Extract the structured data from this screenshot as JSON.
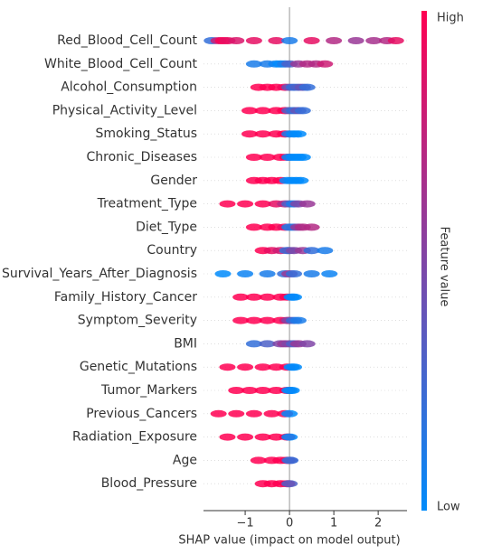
{
  "chart_data": {
    "type": "beeswarm",
    "xlabel": "SHAP value (impact on model output)",
    "colorbar_label": "Feature value",
    "colorbar_high": "High",
    "colorbar_low": "Low",
    "colors": [
      "#008bfb",
      "#ff0052"
    ],
    "xlim": [
      -1.94,
      2.65
    ],
    "xticks": [
      {
        "value": -1,
        "label": "−1"
      },
      0,
      1,
      2
    ],
    "series": [
      {
        "name": "Red_Blood_Cell_Count",
        "values": [
          -1.75,
          -1.6,
          -1.5,
          -1.4,
          -1.2,
          -0.8,
          -0.3,
          0,
          0.5,
          1,
          1.5,
          1.9,
          2.2,
          2.4
        ],
        "feature_values": [
          0.2,
          0.8,
          1,
          0.9,
          0.85,
          0.9,
          0.9,
          0.1,
          0.9,
          0.7,
          0.6,
          0.65,
          0.7,
          0.9
        ]
      },
      {
        "name": "White_Blood_Cell_Count",
        "values": [
          -0.8,
          -0.5,
          -0.3,
          -0.2,
          -0.1,
          0,
          0.2,
          0.4,
          0.6,
          0.8
        ],
        "feature_values": [
          0.1,
          0.1,
          0.05,
          0,
          0.1,
          0.3,
          0.6,
          0.7,
          0.7,
          0.8
        ]
      },
      {
        "name": "Alcohol_Consumption",
        "values": [
          -0.7,
          -0.5,
          -0.3,
          -0.1,
          0,
          0.1,
          0.2,
          0.3,
          0.4
        ],
        "feature_values": [
          1,
          1,
          1,
          0.95,
          0.4,
          0.2,
          0.3,
          0.4,
          0.2
        ]
      },
      {
        "name": "Physical_Activity_Level",
        "values": [
          -0.9,
          -0.6,
          -0.3,
          -0.1,
          0,
          0.1,
          0.2,
          0.3
        ],
        "feature_values": [
          1,
          1,
          1,
          1,
          0.3,
          0.2,
          0.4,
          0.2
        ]
      },
      {
        "name": "Smoking_Status",
        "values": [
          -0.9,
          -0.6,
          -0.3,
          -0.1,
          0,
          0.1,
          0.2
        ],
        "feature_values": [
          1,
          1,
          1,
          1,
          0.1,
          0,
          0
        ]
      },
      {
        "name": "Chronic_Diseases",
        "values": [
          -0.8,
          -0.5,
          -0.2,
          -0.05,
          0,
          0.1,
          0.2,
          0.3
        ],
        "feature_values": [
          1,
          1,
          1,
          1,
          0,
          0,
          0,
          0
        ]
      },
      {
        "name": "Gender",
        "values": [
          -0.8,
          -0.6,
          -0.4,
          -0.2,
          -0.05,
          0.05,
          0.15,
          0.25
        ],
        "feature_values": [
          1,
          1,
          1,
          1,
          0,
          0,
          0,
          0
        ]
      },
      {
        "name": "Treatment_Type",
        "values": [
          -1.4,
          -1,
          -0.6,
          -0.3,
          -0.1,
          0,
          0.1,
          0.2,
          0.4
        ],
        "feature_values": [
          1,
          1,
          1,
          0.9,
          0.7,
          0.3,
          0.1,
          0.5,
          0.6
        ]
      },
      {
        "name": "Diet_Type",
        "values": [
          -0.8,
          -0.5,
          -0.3,
          -0.1,
          0,
          0.1,
          0.2,
          0.3,
          0.5
        ],
        "feature_values": [
          1,
          1,
          1,
          0.9,
          0.1,
          0.2,
          0.6,
          0.7,
          0.7
        ]
      },
      {
        "name": "Country",
        "values": [
          -0.6,
          -0.4,
          -0.2,
          -0.05,
          0,
          0.1,
          0.3,
          0.5,
          0.8
        ],
        "feature_values": [
          1,
          0.9,
          0.8,
          0.2,
          0.3,
          0.5,
          0.6,
          0.2,
          0.1
        ]
      },
      {
        "name": "Survival_Years_After_Diagnosis",
        "values": [
          -1.5,
          -1,
          -0.5,
          -0.1,
          0,
          0.1,
          0.5,
          0.9
        ],
        "feature_values": [
          0,
          0.05,
          0.1,
          0.2,
          0.6,
          0.2,
          0.1,
          0.05
        ]
      },
      {
        "name": "Family_History_Cancer",
        "values": [
          -1.1,
          -0.8,
          -0.5,
          -0.2,
          -0.05,
          0.05,
          0.1
        ],
        "feature_values": [
          1,
          1,
          1,
          1,
          1,
          0,
          0
        ]
      },
      {
        "name": "Symptom_Severity",
        "values": [
          -1.1,
          -0.8,
          -0.5,
          -0.2,
          -0.05,
          0,
          0.1,
          0.2
        ],
        "feature_values": [
          1,
          1,
          1,
          1,
          0.8,
          0.5,
          0.2,
          0.1
        ]
      },
      {
        "name": "BMI",
        "values": [
          -0.8,
          -0.5,
          -0.2,
          -0.1,
          0,
          0.1,
          0.2,
          0.4
        ],
        "feature_values": [
          0.2,
          0.3,
          0.5,
          0.6,
          0.5,
          0.3,
          0.6,
          0.5
        ]
      },
      {
        "name": "Genetic_Mutations",
        "values": [
          -1.4,
          -1,
          -0.6,
          -0.3,
          -0.05,
          0.05,
          0.1
        ],
        "feature_values": [
          1,
          1,
          1,
          1,
          1,
          0,
          0
        ]
      },
      {
        "name": "Tumor_Markers",
        "values": [
          -1.2,
          -0.9,
          -0.6,
          -0.3,
          -0.05,
          0,
          0.05
        ],
        "feature_values": [
          1,
          1,
          1,
          1,
          1,
          0,
          0
        ]
      },
      {
        "name": "Previous_Cancers",
        "values": [
          -1.6,
          -1.2,
          -0.8,
          -0.4,
          -0.1,
          0
        ],
        "feature_values": [
          1,
          1,
          1,
          1,
          1,
          0
        ]
      },
      {
        "name": "Radiation_Exposure",
        "values": [
          -1.4,
          -1,
          -0.6,
          -0.3,
          -0.05,
          0
        ],
        "feature_values": [
          1,
          1,
          1,
          1,
          1,
          0
        ]
      },
      {
        "name": "Age",
        "values": [
          -0.7,
          -0.4,
          -0.2,
          -0.05,
          0,
          0.02
        ],
        "feature_values": [
          1,
          1,
          1,
          1,
          0.5,
          0.2
        ]
      },
      {
        "name": "Blood_Pressure",
        "values": [
          -0.6,
          -0.4,
          -0.2,
          -0.05,
          0
        ],
        "feature_values": [
          1,
          1,
          1,
          1,
          0.3
        ]
      }
    ]
  }
}
